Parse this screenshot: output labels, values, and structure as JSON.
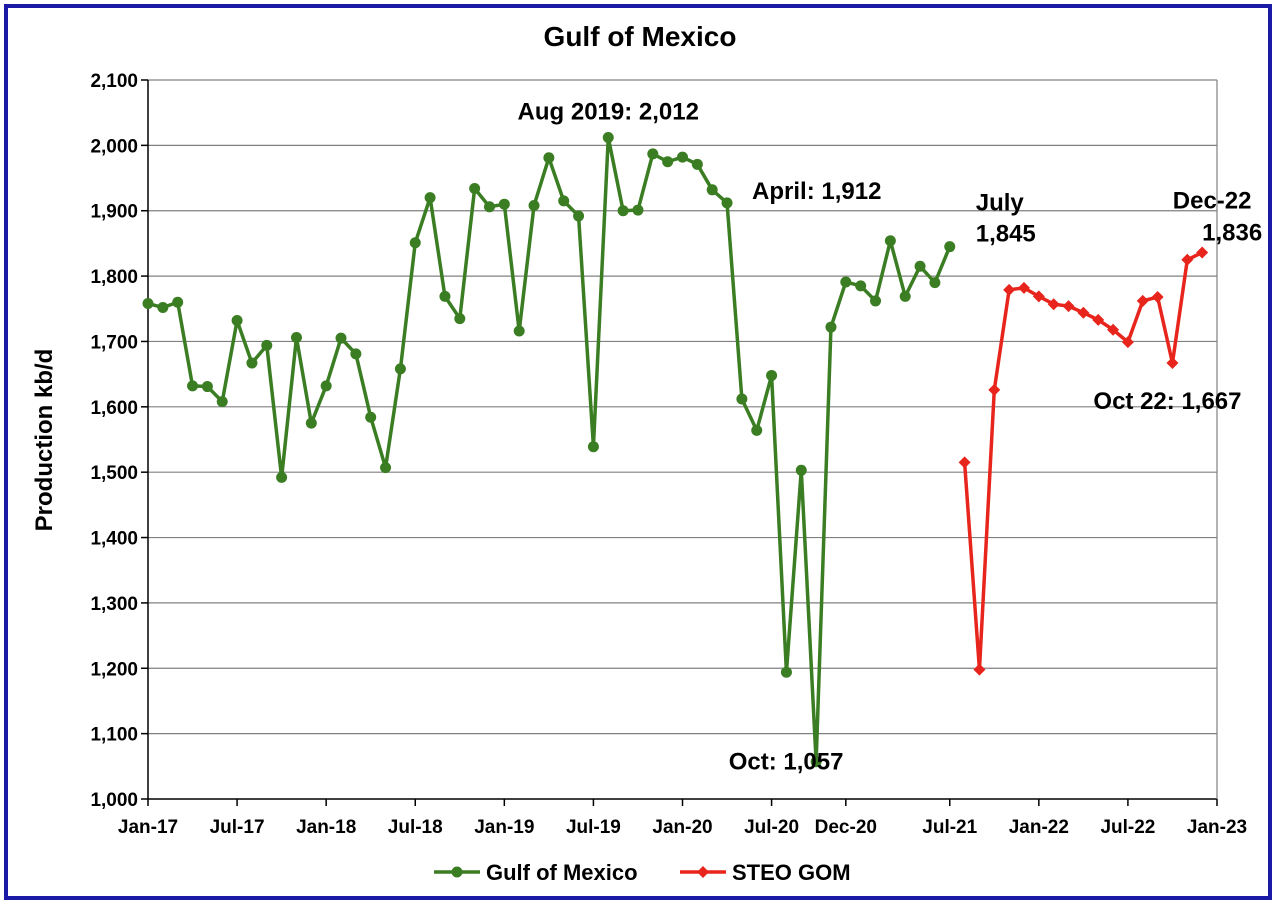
{
  "chart_data": {
    "type": "line",
    "title": "Gulf of Mexico",
    "xlabel": "",
    "ylabel": "Production kb/d",
    "ylim": [
      1000,
      2100
    ],
    "yticks": [
      1000,
      1100,
      1200,
      1300,
      1400,
      1500,
      1600,
      1700,
      1800,
      1900,
      2000,
      2100
    ],
    "ytick_labels": [
      "1,000",
      "1,100",
      "1,200",
      "1,300",
      "1,400",
      "1,500",
      "1,600",
      "1,700",
      "1,800",
      "1,900",
      "2,000",
      "2,100"
    ],
    "xlim": [
      "2017-01",
      "2023-01"
    ],
    "xticks": [
      "2017-01",
      "2017-07",
      "2018-01",
      "2018-07",
      "2019-01",
      "2019-07",
      "2020-01",
      "2020-07",
      "2020-12",
      "2021-07",
      "2022-01",
      "2022-07",
      "2023-01"
    ],
    "xtick_labels": [
      "Jan-17",
      "Jul-17",
      "Jan-18",
      "Jul-18",
      "Jan-19",
      "Jul-19",
      "Jan-20",
      "Jul-20",
      "Dec-20",
      "Jul-21",
      "Jan-22",
      "Jul-22",
      "Jan-23"
    ],
    "grid": "horizontal",
    "legend": "bottom",
    "series": [
      {
        "name": "Gulf of Mexico",
        "color": "#3a7d22",
        "marker": "circle",
        "x": [
          "2017-01",
          "2017-02",
          "2017-03",
          "2017-04",
          "2017-05",
          "2017-06",
          "2017-07",
          "2017-08",
          "2017-09",
          "2017-10",
          "2017-11",
          "2017-12",
          "2018-01",
          "2018-02",
          "2018-03",
          "2018-04",
          "2018-05",
          "2018-06",
          "2018-07",
          "2018-08",
          "2018-09",
          "2018-10",
          "2018-11",
          "2018-12",
          "2019-01",
          "2019-02",
          "2019-03",
          "2019-04",
          "2019-05",
          "2019-06",
          "2019-07",
          "2019-08",
          "2019-09",
          "2019-10",
          "2019-11",
          "2019-12",
          "2020-01",
          "2020-02",
          "2020-03",
          "2020-04",
          "2020-05",
          "2020-06",
          "2020-07",
          "2020-08",
          "2020-09",
          "2020-10",
          "2020-11",
          "2020-12",
          "2021-01",
          "2021-02",
          "2021-03",
          "2021-04",
          "2021-05",
          "2021-06",
          "2021-07"
        ],
        "values": [
          1758,
          1752,
          1760,
          1632,
          1631,
          1608,
          1732,
          1667,
          1694,
          1492,
          1706,
          1575,
          1632,
          1705,
          1681,
          1584,
          1507,
          1658,
          1851,
          1920,
          1769,
          1735,
          1934,
          1906,
          1910,
          1716,
          1908,
          1981,
          1915,
          1892,
          1539,
          2012,
          1900,
          1901,
          1987,
          1975,
          1982,
          1971,
          1932,
          1912,
          1612,
          1564,
          1648,
          1194,
          1503,
          1057,
          1722,
          1791,
          1785,
          1762,
          1854,
          1769,
          1815,
          1790,
          1845
        ]
      },
      {
        "name": "STEO GOM",
        "color": "#e8251c",
        "marker": "diamond",
        "x": [
          "2021-08",
          "2021-09",
          "2021-10",
          "2021-11",
          "2021-12",
          "2022-01",
          "2022-02",
          "2022-03",
          "2022-04",
          "2022-05",
          "2022-06",
          "2022-07",
          "2022-08",
          "2022-09",
          "2022-10",
          "2022-11",
          "2022-12"
        ],
        "values": [
          1515,
          1198,
          1626,
          1779,
          1782,
          1769,
          1757,
          1754,
          1744,
          1733,
          1718,
          1699,
          1762,
          1768,
          1667,
          1825,
          1836
        ]
      }
    ],
    "annotations": [
      {
        "text": "Aug 2019: 2,012",
        "x": "2019-08",
        "y": 2012
      },
      {
        "text": "April: 1,912",
        "x": "2020-04",
        "y": 1912
      },
      {
        "text": "July",
        "x": "2021-07",
        "y": 1845
      },
      {
        "text": "1,845",
        "x": "2021-07",
        "y": 1845
      },
      {
        "text": "Oct: 1,057",
        "x": "2020-10",
        "y": 1057
      },
      {
        "text": "Dec-22",
        "x": "2022-12",
        "y": 1836
      },
      {
        "text": "1,836",
        "x": "2022-12",
        "y": 1836
      },
      {
        "text": "Oct 22: 1,667",
        "x": "2022-10",
        "y": 1667
      }
    ]
  }
}
